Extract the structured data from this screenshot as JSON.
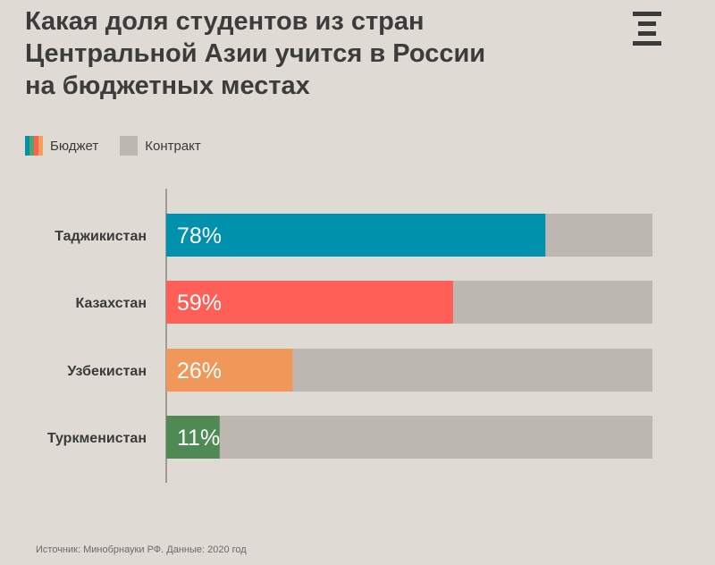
{
  "title_lines": [
    "Какая доля студентов из стран",
    "Центральной Азии учится в России",
    "на бюджетных местах"
  ],
  "logo_icon": "meduza-logo-icon",
  "legend": {
    "budget_label": "Бюджет",
    "contract_label": "Контракт",
    "budget_swatch_colors": [
      "#0091ad",
      "#5aa16a",
      "#ff5f56",
      "#f5a15a"
    ],
    "contract_color": "#bcb8b1"
  },
  "source": "Источник: Минобрнауки РФ. Данные: 2020 год",
  "chart_data": {
    "type": "bar",
    "orientation": "horizontal",
    "stacked": true,
    "categories": [
      "Таджикистан",
      "Казахстан",
      "Узбекистан",
      "Туркменистан"
    ],
    "series": [
      {
        "name": "Бюджет",
        "values": [
          78,
          59,
          26,
          11
        ],
        "colors": [
          "#0091ad",
          "#ff5f56",
          "#f0985a",
          "#4f8a55"
        ]
      },
      {
        "name": "Контракт",
        "values": [
          22,
          41,
          74,
          89
        ],
        "color": "#bcb8b1"
      }
    ],
    "data_labels": [
      "78%",
      "59%",
      "26%",
      "11%"
    ],
    "xlim": [
      0,
      100
    ],
    "legend_position": "top-left",
    "grid": false
  }
}
